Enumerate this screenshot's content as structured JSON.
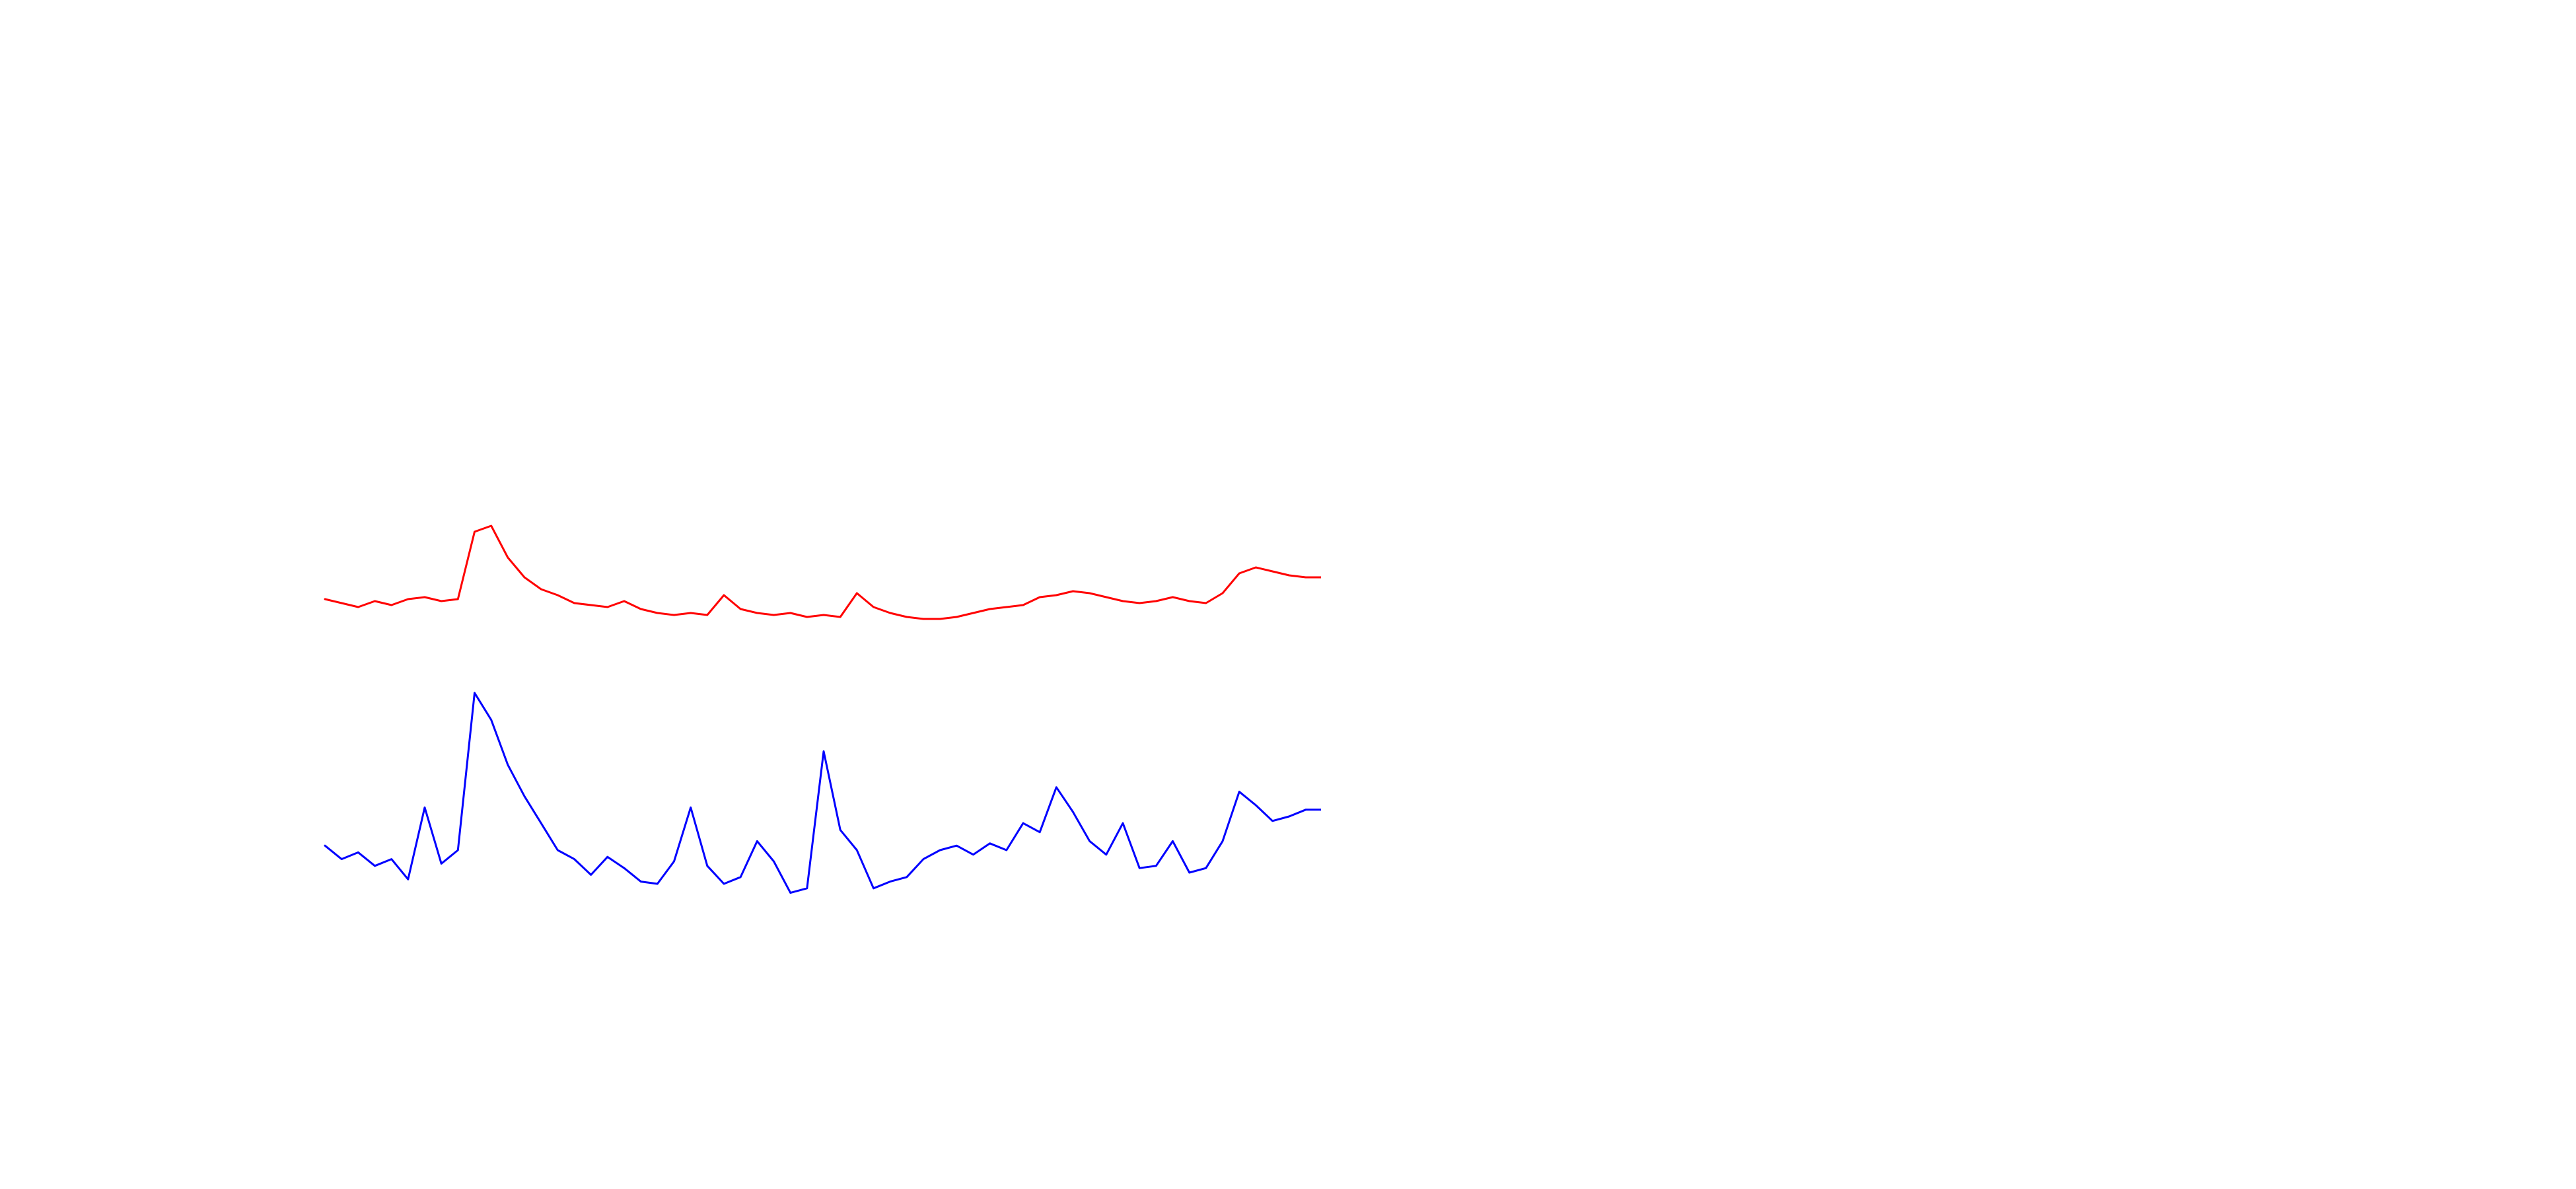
{
  "chart_data": [
    {
      "type": "line",
      "title": "",
      "xlabel": "",
      "ylabel": "",
      "grid": false,
      "legend": "none",
      "x": [
        0,
        5,
        10,
        15,
        20,
        25,
        30,
        35,
        40,
        45,
        50,
        55,
        60,
        65,
        70,
        75,
        80,
        85,
        90,
        95,
        100,
        105,
        110,
        115,
        120,
        125,
        130,
        135,
        140,
        145,
        150,
        155,
        160,
        165,
        170,
        175,
        180,
        185,
        190,
        195,
        200,
        205,
        210,
        215,
        220,
        225,
        230,
        235,
        240,
        245,
        250,
        255,
        260,
        265,
        270,
        275,
        280,
        285,
        290,
        295,
        300
      ],
      "ylim": [
        0,
        100
      ],
      "series": [
        {
          "color": "#ff0000",
          "values": [
            11,
            9,
            7,
            10,
            8,
            11,
            12,
            10,
            11,
            45,
            48,
            32,
            22,
            16,
            13,
            9,
            8,
            7,
            10,
            6,
            4,
            3,
            4,
            3,
            13,
            6,
            4,
            3,
            4,
            2,
            3,
            2,
            14,
            7,
            4,
            2,
            1,
            1,
            2,
            4,
            6,
            7,
            8,
            12,
            13,
            15,
            14,
            12,
            10,
            9,
            10,
            12,
            10,
            9,
            14,
            24,
            27,
            25,
            23,
            22,
            22
          ]
        },
        {
          "color": "#0000ff",
          "values": [
            47,
            41,
            44,
            38,
            41,
            32,
            64,
            39,
            45,
            115,
            103,
            83,
            69,
            57,
            45,
            41,
            34,
            42,
            37,
            31,
            30,
            40,
            64,
            38,
            30,
            33,
            49,
            40,
            26,
            28,
            89,
            54,
            45,
            28,
            31,
            33,
            41,
            45,
            47,
            43,
            48,
            45,
            57,
            53,
            73,
            62,
            49,
            43,
            57,
            37,
            38,
            49,
            35,
            37,
            49,
            71,
            65,
            58,
            60,
            63,
            63
          ]
        }
      ]
    }
  ]
}
